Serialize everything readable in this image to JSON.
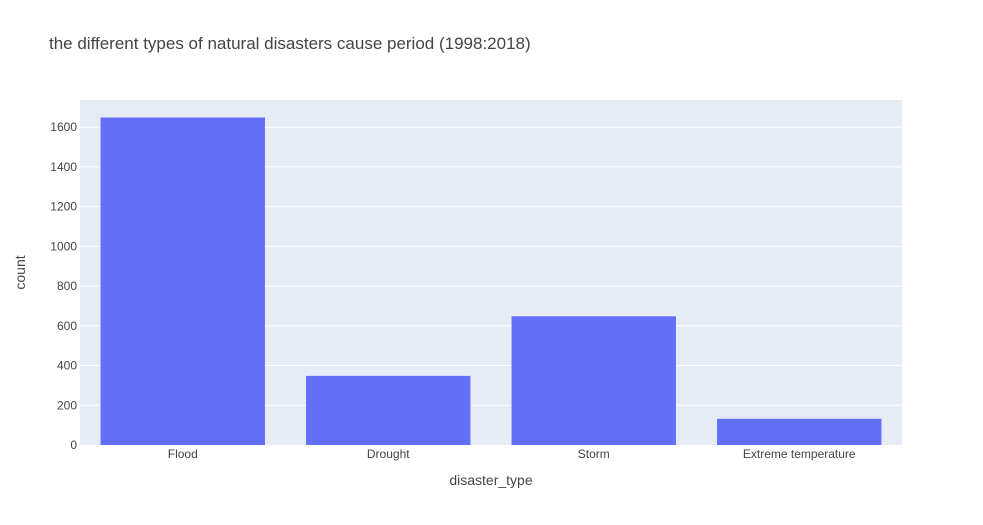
{
  "chart_data": {
    "type": "bar",
    "title": "the different types of natural disasters cause period (1998:2018)",
    "xlabel": "disaster_type",
    "ylabel": "count",
    "categories": [
      "Flood",
      "Drought",
      "Storm",
      "Extreme temperature"
    ],
    "values": [
      1649,
      348,
      648,
      132
    ],
    "ylim": [
      0,
      1737
    ],
    "yticks": [
      0,
      200,
      400,
      600,
      800,
      1000,
      1200,
      1400,
      1600
    ],
    "grid": true,
    "legend": "none",
    "colors": {
      "bar": "#636efa",
      "plot_background": "#e5ecf6",
      "gridline": "#ffffff",
      "text": "#444444"
    }
  }
}
